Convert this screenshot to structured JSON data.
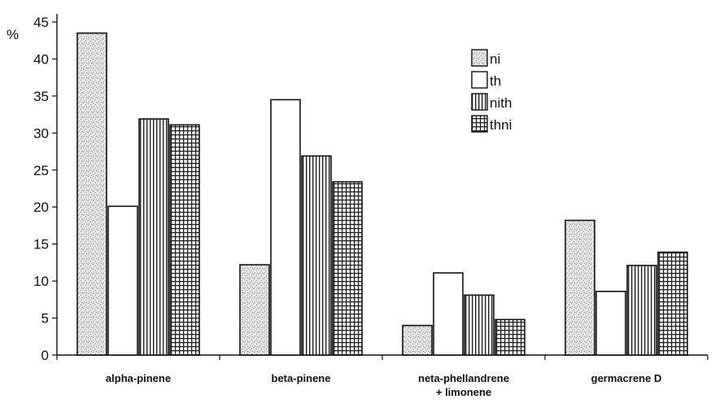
{
  "chart_data": {
    "type": "bar",
    "ylabel": "%",
    "ylim": [
      0,
      45
    ],
    "yticks": [
      0,
      5,
      10,
      15,
      20,
      25,
      30,
      35,
      40,
      45
    ],
    "categories": [
      "alpha-pinene",
      "beta-pinene",
      "neta-phellandrene + limonene",
      "germacrene D"
    ],
    "category_lines": [
      [
        "alpha-pinene"
      ],
      [
        "beta-pinene"
      ],
      [
        "neta-phellandrene",
        "+ limonene"
      ],
      [
        "germacrene D"
      ]
    ],
    "series": [
      {
        "name": "ni",
        "values": [
          43.5,
          12.2,
          4.0,
          18.2
        ],
        "pattern": "stipple"
      },
      {
        "name": "th",
        "values": [
          20.1,
          34.5,
          11.1,
          8.6
        ],
        "pattern": "plain"
      },
      {
        "name": "nith",
        "values": [
          31.9,
          26.9,
          8.1,
          12.1
        ],
        "pattern": "vertical"
      },
      {
        "name": "thni",
        "values": [
          31.1,
          23.4,
          4.8,
          13.9
        ],
        "pattern": "grid"
      }
    ],
    "legend_position": "top-right",
    "grid": false
  }
}
